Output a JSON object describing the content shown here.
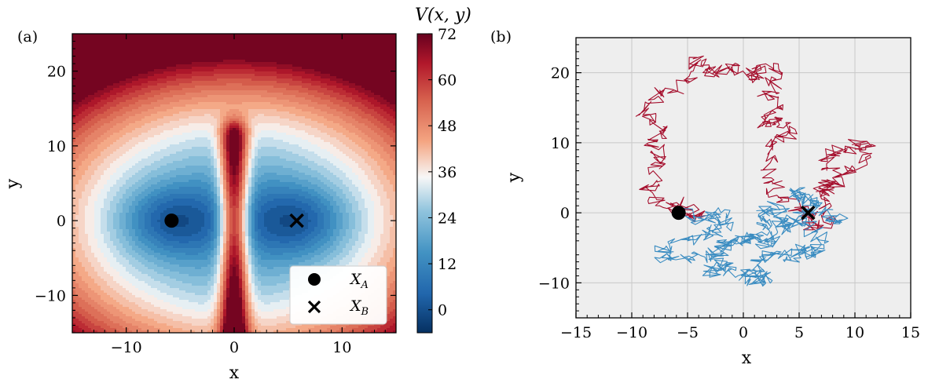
{
  "chart_data": [
    {
      "panel": "(a)",
      "type": "heatmap",
      "subtype": "filled-contour",
      "xlabel": "x",
      "ylabel": "y",
      "xlim": [
        -15,
        15
      ],
      "ylim": [
        -15,
        25
      ],
      "xticks": [
        -10,
        0,
        10
      ],
      "yticks": [
        -10,
        0,
        10,
        20
      ],
      "colormap": "RdBu_r",
      "colorbar": {
        "label": "V(x, y)",
        "range": [
          -6,
          72
        ],
        "ticks": [
          0,
          12,
          24,
          36,
          48,
          60,
          72
        ]
      },
      "markers": [
        {
          "name": "X_A",
          "label": "X",
          "sub": "A",
          "symbol": "circle",
          "x": -5.8,
          "y": 0
        },
        {
          "name": "X_B",
          "label": "X",
          "sub": "B",
          "symbol": "cross",
          "x": 5.8,
          "y": 0
        }
      ],
      "legend_position": "lower-right"
    },
    {
      "panel": "(b)",
      "type": "line",
      "subtype": "trajectory",
      "xlabel": "x",
      "ylabel": "y",
      "xlim": [
        -15,
        15
      ],
      "ylim": [
        -15,
        25
      ],
      "xticks": [
        -15,
        -10,
        -5,
        0,
        5,
        10,
        15
      ],
      "yticks": [
        -10,
        0,
        10,
        20
      ],
      "grid": true,
      "background": "#eeeeee",
      "series": [
        {
          "color": "#a50f2d",
          "points": [
            [
              -6,
              0
            ],
            [
              -4,
              -0.8
            ],
            [
              -5.5,
              1.5
            ],
            [
              -7.5,
              1
            ],
            [
              -8.5,
              4
            ],
            [
              -7,
              7
            ],
            [
              -8.5,
              10
            ],
            [
              -7,
              12
            ],
            [
              -9,
              14
            ],
            [
              -7.5,
              17
            ],
            [
              -5,
              18.5
            ],
            [
              -4.5,
              22
            ],
            [
              -3,
              20
            ],
            [
              -1,
              21
            ],
            [
              0.5,
              19
            ],
            [
              1.5,
              21
            ],
            [
              3.5,
              20
            ],
            [
              2,
              17
            ],
            [
              3,
              15
            ],
            [
              1.5,
              12.5
            ],
            [
              3.5,
              13.5
            ],
            [
              4,
              11.5
            ],
            [
              2,
              9.5
            ],
            [
              2.5,
              5
            ],
            [
              3,
              2.5
            ],
            [
              5.8,
              0
            ],
            [
              6,
              -2
            ],
            [
              8,
              -1
            ],
            [
              7,
              2
            ],
            [
              8,
              5
            ],
            [
              7.5,
              8
            ],
            [
              9,
              9
            ],
            [
              10.5,
              10
            ],
            [
              11.5,
              8.5
            ],
            [
              9.5,
              6
            ],
            [
              8,
              4
            ],
            [
              6.5,
              3
            ]
          ]
        },
        {
          "color": "#3a8cc1",
          "points": [
            [
              -5.8,
              0
            ],
            [
              -3.5,
              -1
            ],
            [
              -2,
              0
            ],
            [
              -1.5,
              -2
            ],
            [
              -3,
              -3
            ],
            [
              -5,
              -4
            ],
            [
              -7,
              -5
            ],
            [
              -7.5,
              -6.5
            ],
            [
              -4.5,
              -6.5
            ],
            [
              -2.5,
              -6
            ],
            [
              -1.5,
              -4.5
            ],
            [
              1,
              -3.5
            ],
            [
              2,
              -2
            ],
            [
              1.5,
              -0.5
            ],
            [
              3,
              1
            ],
            [
              3.5,
              -2
            ],
            [
              4,
              -1
            ],
            [
              6,
              -2
            ],
            [
              7,
              -4.5
            ],
            [
              6.5,
              -6
            ],
            [
              5.5,
              -5
            ],
            [
              4.5,
              -6.5
            ],
            [
              3,
              -5.5
            ],
            [
              1.5,
              -7
            ],
            [
              0.5,
              -9.5
            ],
            [
              2,
              -10
            ],
            [
              1.5,
              -8.5
            ],
            [
              -0.5,
              -9
            ],
            [
              -2,
              -7.5
            ],
            [
              -3,
              -8.5
            ],
            [
              -2.5,
              -6
            ],
            [
              -1,
              -4
            ],
            [
              0.5,
              -3.5
            ],
            [
              2.5,
              -4.5
            ],
            [
              3,
              -3
            ],
            [
              5,
              -0.5
            ],
            [
              6.5,
              1
            ],
            [
              5.5,
              2.5
            ],
            [
              4.5,
              3
            ],
            [
              6,
              1
            ],
            [
              8,
              -0.5
            ],
            [
              9,
              -1
            ]
          ]
        }
      ],
      "markers": [
        {
          "name": "X_A",
          "symbol": "circle",
          "x": -5.8,
          "y": 0
        },
        {
          "name": "X_B",
          "symbol": "cross",
          "x": 5.8,
          "y": 0
        }
      ]
    }
  ]
}
